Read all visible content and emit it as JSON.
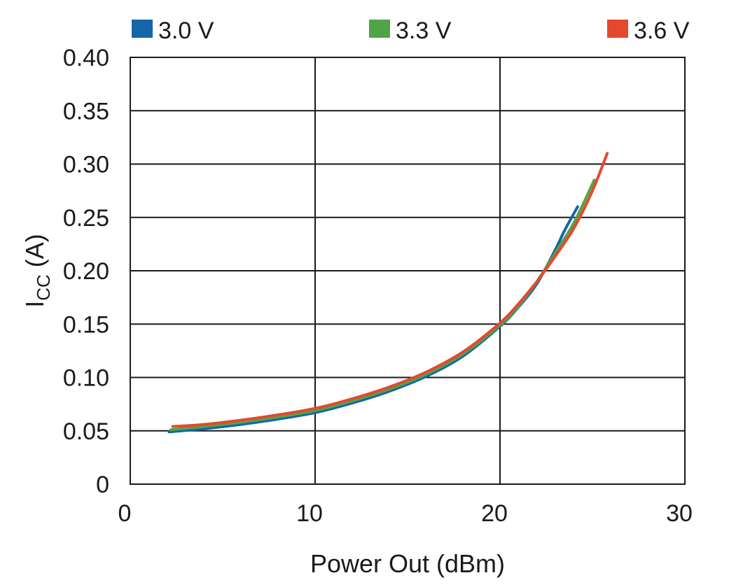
{
  "chart_data": {
    "type": "line",
    "xlabel": "Power Out (dBm)",
    "ylabel_main": "I",
    "ylabel_sub": "CC",
    "ylabel_unit": " (A)",
    "xlim": [
      0,
      30
    ],
    "ylim": [
      0,
      0.4
    ],
    "x_ticks": [
      0,
      10,
      20,
      30
    ],
    "x_tick_labels": [
      "0",
      "10",
      "20",
      "30"
    ],
    "y_ticks": [
      0,
      0.05,
      0.1,
      0.15,
      0.2,
      0.25,
      0.3,
      0.35,
      0.4
    ],
    "y_tick_labels": [
      "0",
      "0.05",
      "0.10",
      "0.15",
      "0.20",
      "0.25",
      "0.30",
      "0.35",
      "0.40"
    ],
    "grid": true,
    "legend_position": "top",
    "series": [
      {
        "name": "3.0 V",
        "color": "#1565a8",
        "x": [
          2.1,
          4,
          6,
          8,
          10,
          12,
          14,
          16,
          18,
          20,
          21,
          22,
          23,
          23.5,
          24.2
        ],
        "y": [
          0.049,
          0.052,
          0.056,
          0.061,
          0.067,
          0.076,
          0.087,
          0.101,
          0.12,
          0.148,
          0.166,
          0.188,
          0.22,
          0.238,
          0.26
        ]
      },
      {
        "name": "3.3 V",
        "color": "#52a347",
        "x": [
          2.2,
          4,
          6,
          8,
          10,
          12,
          14,
          16,
          18,
          20,
          21,
          22,
          23,
          24,
          25.1
        ],
        "y": [
          0.051,
          0.054,
          0.058,
          0.063,
          0.069,
          0.078,
          0.089,
          0.103,
          0.122,
          0.149,
          0.167,
          0.19,
          0.217,
          0.245,
          0.285
        ]
      },
      {
        "name": "3.6 V",
        "color": "#e4492e",
        "x": [
          2.3,
          4,
          6,
          8,
          10,
          12,
          14,
          16,
          18,
          20,
          21,
          22,
          23,
          24,
          25,
          25.8
        ],
        "y": [
          0.054,
          0.056,
          0.06,
          0.065,
          0.071,
          0.08,
          0.091,
          0.105,
          0.124,
          0.151,
          0.169,
          0.19,
          0.214,
          0.24,
          0.275,
          0.31
        ]
      }
    ]
  }
}
